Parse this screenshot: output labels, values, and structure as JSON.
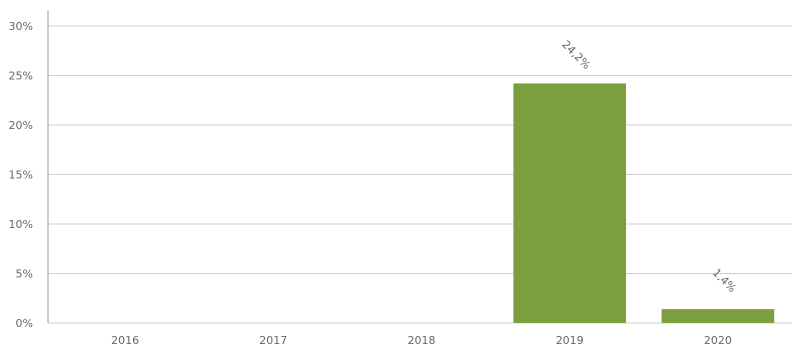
{
  "chart_data": {
    "type": "bar",
    "categories": [
      "2016",
      "2017",
      "2018",
      "2019",
      "2020"
    ],
    "values": [
      0,
      0,
      0,
      24.2,
      1.4
    ],
    "data_labels": [
      "",
      "",
      "",
      "24,2%",
      "1,4%"
    ],
    "y_ticks": [
      "0%",
      "5%",
      "10%",
      "15%",
      "20%",
      "25%",
      "30%"
    ],
    "ylim": [
      0,
      30
    ],
    "grid": true,
    "legend": "none",
    "bar_color": "#7b9e3e"
  }
}
